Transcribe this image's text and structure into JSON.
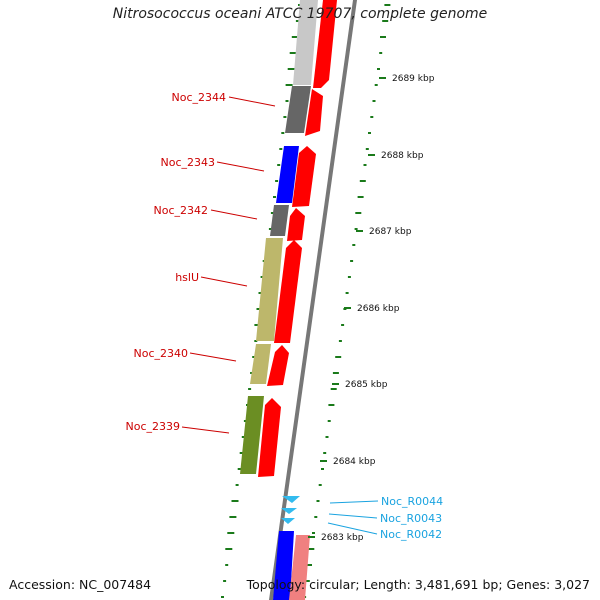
{
  "title": "Nitrosococcus oceani ATCC 19707, complete genome",
  "accession": "Accession: NC_007484",
  "topology": "Topology: circular; Length: 3,481,691 bp; Genes: 3,027",
  "colors": {
    "cds_forward": "#ff0000",
    "gene_grey": "#666666",
    "gene_blue": "#0000ff",
    "gene_khaki": "#bdb76b",
    "gene_olive": "#6b8e23",
    "rna_cyan": "#33bbee",
    "gc_dots": "#1a7a1a",
    "label_red": "#cc0000",
    "label_cyan": "#1aa3e0"
  },
  "ticks": [
    "2689 kbp",
    "2688 kbp",
    "2687 kbp",
    "2686 kbp",
    "2685 kbp",
    "2684 kbp",
    "2683 kbp"
  ],
  "gene_labels": [
    "Noc_2344",
    "Noc_2343",
    "Noc_2342",
    "hslU",
    "Noc_2340",
    "Noc_2339"
  ],
  "rna_labels": [
    "Noc_R0044",
    "Noc_R0043",
    "Noc_R0042"
  ]
}
